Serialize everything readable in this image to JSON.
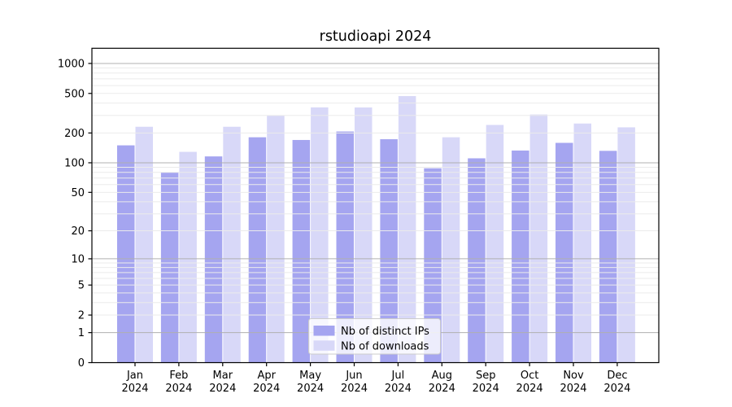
{
  "chart_data": {
    "type": "bar",
    "title": "rstudioapi 2024",
    "xlabel": "",
    "ylabel": "",
    "categories": [
      "Jan",
      "Feb",
      "Mar",
      "Apr",
      "May",
      "Jun",
      "Jul",
      "Aug",
      "Sep",
      "Oct",
      "Nov",
      "Dec"
    ],
    "category_year_line": "2024",
    "series": [
      {
        "name": "Nb of distinct IPs",
        "color": "#a5a5f0",
        "values": [
          150,
          80,
          116,
          181,
          170,
          207,
          173,
          88,
          111,
          133,
          159,
          132
        ]
      },
      {
        "name": "Nb of downloads",
        "color": "#d8d8f8",
        "values": [
          231,
          129,
          231,
          299,
          362,
          361,
          470,
          181,
          241,
          307,
          249,
          228
        ]
      }
    ],
    "y_ticks": [
      0,
      1,
      2,
      5,
      10,
      20,
      50,
      100,
      200,
      500,
      1000
    ],
    "y_scale": "log10(value+1)",
    "ylim": [
      0,
      1400
    ],
    "grid": {
      "enabled": true,
      "major_values": [
        1,
        10,
        100,
        1000
      ],
      "minor_multipliers": [
        2,
        3,
        4,
        5,
        6,
        7,
        8,
        9
      ],
      "minor_decades": [
        1,
        10,
        100
      ],
      "major_color": "#b0b0b0",
      "minor_color": "#ebebeb"
    },
    "legend": {
      "position": "bottom-center",
      "entries": [
        "Nb of distinct IPs",
        "Nb of downloads"
      ],
      "background": "rgba(255,255,255,0.8)",
      "border_color": "#cccccc"
    },
    "axis_color": "#000000",
    "background_color": "#ffffff"
  }
}
